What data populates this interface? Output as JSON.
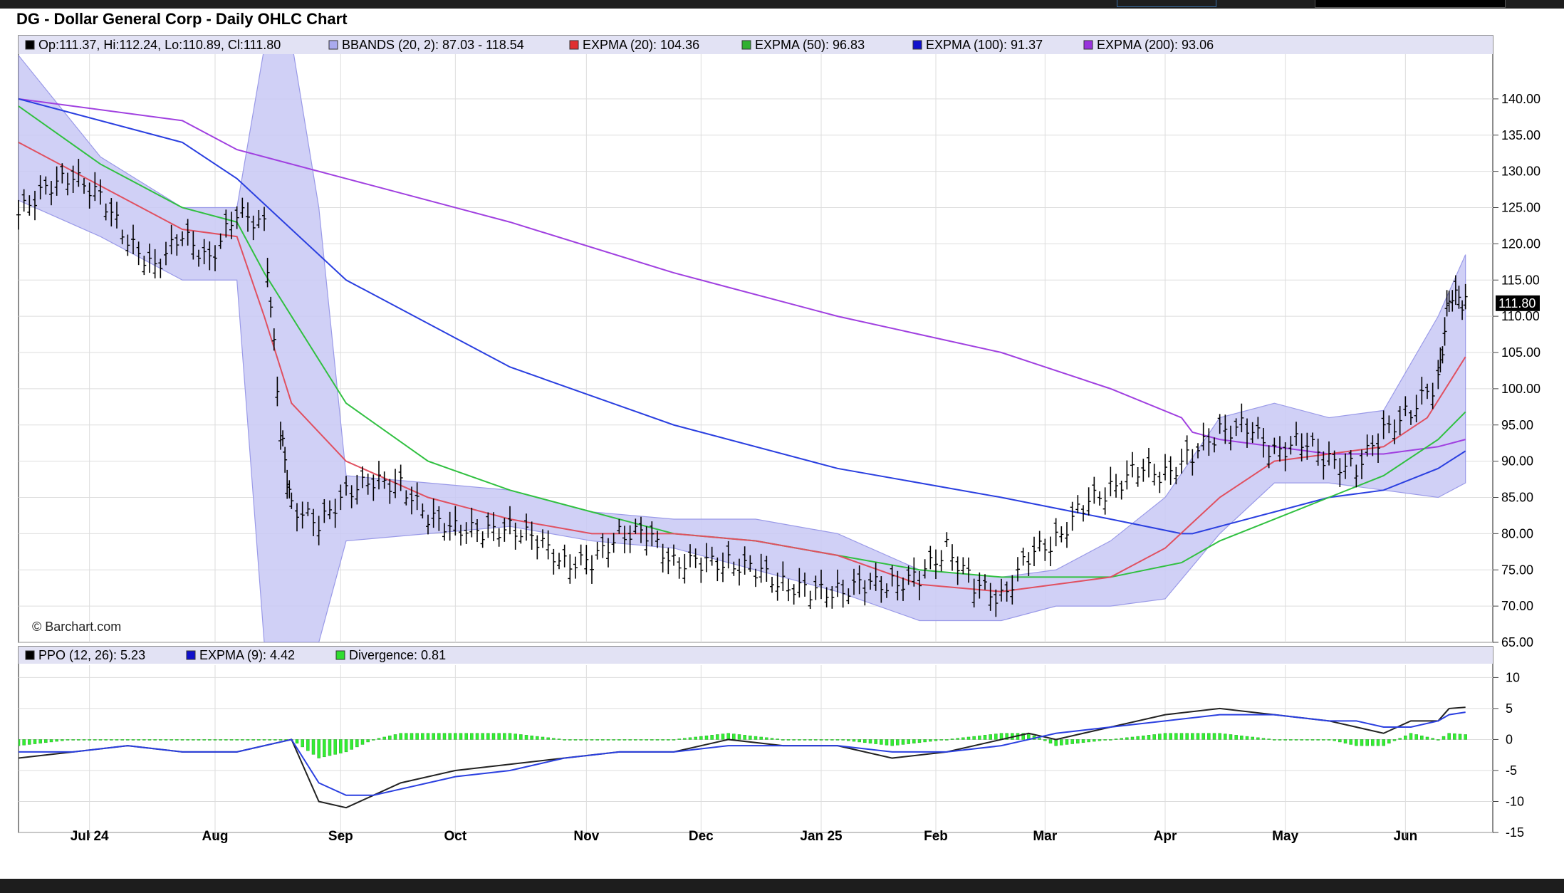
{
  "chart_data": [
    {
      "panel": "price",
      "type": "ohlc",
      "title": "DG - Dollar General Corp - Daily OHLC Chart",
      "ylim": [
        65,
        145
      ],
      "yticks": [
        "140.00",
        "135.00",
        "130.00",
        "125.00",
        "120.00",
        "115.00",
        "110.00",
        "105.00",
        "100.00",
        "95.00",
        "90.00",
        "85.00",
        "80.00",
        "75.00",
        "70.00",
        "65.00"
      ],
      "last_price_label": "111.80",
      "last_price": 111.8,
      "credit": "© Barchart.com",
      "legend": [
        {
          "label": "Op:111.37, Hi:112.24, Lo:110.89, Cl:111.80",
          "color": "#000000"
        },
        {
          "label": "BBANDS (20, 2): 87.03 - 118.54",
          "color": "#aaaaee"
        },
        {
          "label": "EXPMA (20): 104.36",
          "color": "#e03030"
        },
        {
          "label": "EXPMA (50): 96.83",
          "color": "#30b030"
        },
        {
          "label": "EXPMA (100): 91.37",
          "color": "#1010cc"
        },
        {
          "label": "EXPMA (200): 93.06",
          "color": "#9933dd"
        }
      ],
      "series": [
        {
          "name": "EXPMA (200)",
          "color": "#a040e0",
          "x": [
            0,
            30,
            40,
            60,
            90,
            120,
            150,
            180,
            200,
            213,
            215,
            220,
            230,
            240,
            250,
            260,
            265
          ],
          "values": [
            140,
            137,
            133,
            129,
            123,
            116,
            110,
            105,
            100,
            96,
            94,
            93,
            92,
            91,
            91,
            92,
            93
          ]
        },
        {
          "name": "EXPMA (100)",
          "color": "#2a3fe0",
          "x": [
            0,
            30,
            40,
            60,
            90,
            120,
            150,
            180,
            200,
            213,
            215,
            220,
            230,
            240,
            250,
            260,
            265
          ],
          "values": [
            140,
            134,
            129,
            115,
            103,
            95,
            89,
            85,
            82,
            80,
            80,
            81,
            83,
            85,
            86,
            89,
            91.4
          ]
        },
        {
          "name": "EXPMA (50)",
          "color": "#30c040",
          "x": [
            0,
            15,
            30,
            40,
            45,
            60,
            75,
            90,
            105,
            120,
            135,
            150,
            165,
            180,
            190,
            200,
            213,
            220,
            230,
            240,
            250,
            260,
            265
          ],
          "values": [
            139,
            131,
            125,
            123,
            116,
            98,
            90,
            86,
            83,
            80,
            79,
            77,
            75,
            74,
            74,
            74,
            76,
            79,
            82,
            85,
            88,
            93,
            96.8
          ]
        },
        {
          "name": "EXPMA (20)",
          "color": "#e05060",
          "x": [
            0,
            15,
            30,
            40,
            45,
            50,
            60,
            75,
            90,
            105,
            120,
            135,
            150,
            165,
            180,
            190,
            200,
            210,
            220,
            230,
            240,
            250,
            258,
            265
          ],
          "values": [
            134,
            128,
            122,
            121,
            110,
            98,
            90,
            85,
            82,
            80,
            80,
            79,
            77,
            73,
            72,
            73,
            74,
            78,
            85,
            90,
            91,
            92,
            96,
            104.4
          ]
        }
      ],
      "bbands": {
        "name": "BBANDS (20, 2)",
        "color": "#aaaaee",
        "x": [
          0,
          15,
          30,
          40,
          45,
          50,
          55,
          60,
          75,
          90,
          105,
          120,
          135,
          150,
          165,
          180,
          190,
          200,
          210,
          220,
          230,
          240,
          250,
          260,
          265
        ],
        "upper": [
          146,
          132,
          125,
          125,
          147,
          148,
          125,
          88,
          87,
          86,
          83,
          82,
          82,
          80,
          75,
          74,
          75,
          79,
          85,
          96,
          98,
          96,
          97,
          110,
          118.5
        ],
        "lower": [
          126,
          121,
          115,
          115,
          60,
          58,
          62,
          79,
          80,
          81,
          79,
          78,
          75,
          72,
          68,
          68,
          70,
          70,
          71,
          80,
          87,
          87,
          86,
          85,
          87
        ]
      },
      "ohlc_close": {
        "x": [
          0,
          5,
          10,
          15,
          20,
          25,
          30,
          35,
          40,
          45,
          48,
          50,
          55,
          60,
          65,
          70,
          75,
          80,
          85,
          90,
          95,
          100,
          105,
          110,
          115,
          120,
          125,
          130,
          135,
          140,
          145,
          150,
          155,
          160,
          165,
          170,
          175,
          180,
          185,
          190,
          195,
          200,
          205,
          210,
          215,
          220,
          225,
          230,
          235,
          240,
          245,
          250,
          255,
          260,
          262,
          265
        ],
        "values": [
          124,
          128,
          129,
          127,
          120,
          117,
          121,
          118,
          124,
          123,
          94,
          84,
          81,
          86,
          87,
          87,
          82,
          81,
          80,
          81,
          79,
          76,
          76,
          80,
          80,
          76,
          76,
          76,
          75,
          73,
          72,
          72,
          73,
          73,
          74,
          78,
          73,
          71,
          77,
          79,
          84,
          86,
          89,
          88,
          91,
          94,
          95,
          91,
          93,
          90,
          89,
          94,
          97,
          101,
          113,
          111.8
        ]
      },
      "x_labels": [
        {
          "label": "Jul 24",
          "x": 13
        },
        {
          "label": "Aug",
          "x": 36
        },
        {
          "label": "Sep",
          "x": 59
        },
        {
          "label": "Oct",
          "x": 80
        },
        {
          "label": "Nov",
          "x": 104
        },
        {
          "label": "Dec",
          "x": 125
        },
        {
          "label": "Jan 25",
          "x": 147
        },
        {
          "label": "Feb",
          "x": 168
        },
        {
          "label": "Mar",
          "x": 188
        },
        {
          "label": "Apr",
          "x": 210
        },
        {
          "label": "May",
          "x": 232
        },
        {
          "label": "Jun",
          "x": 254
        }
      ],
      "x_range": [
        0,
        270
      ]
    },
    {
      "panel": "ppo",
      "type": "line",
      "ylim": [
        -15,
        12
      ],
      "yticks": [
        "10",
        "5",
        "0",
        "-5",
        "-10",
        "-15"
      ],
      "legend": [
        {
          "label": "PPO (12, 26): 5.23",
          "color": "#000000"
        },
        {
          "label": "EXPMA (9): 4.42",
          "color": "#1010cc"
        },
        {
          "label": "Divergence: 0.81",
          "color": "#30dd30"
        }
      ],
      "series": [
        {
          "name": "PPO (12, 26)",
          "color": "#222222",
          "x": [
            0,
            10,
            20,
            30,
            40,
            50,
            55,
            60,
            65,
            70,
            80,
            90,
            100,
            110,
            120,
            130,
            140,
            150,
            160,
            170,
            180,
            185,
            190,
            200,
            210,
            220,
            230,
            240,
            245,
            250,
            255,
            260,
            262,
            265
          ],
          "values": [
            -3,
            -2,
            -1,
            -2,
            -2,
            0,
            -10,
            -11,
            -9,
            -7,
            -5,
            -4,
            -3,
            -2,
            -2,
            0,
            -1,
            -1,
            -3,
            -2,
            0,
            1,
            0,
            2,
            4,
            5,
            4,
            3,
            2,
            1,
            3,
            3,
            5,
            5.2
          ]
        },
        {
          "name": "EXPMA (9)",
          "color": "#2a3fe0",
          "x": [
            0,
            10,
            20,
            30,
            40,
            50,
            55,
            60,
            65,
            70,
            80,
            90,
            100,
            110,
            120,
            130,
            140,
            150,
            160,
            170,
            180,
            185,
            190,
            200,
            210,
            220,
            230,
            240,
            245,
            250,
            255,
            260,
            262,
            265
          ],
          "values": [
            -2,
            -2,
            -1,
            -2,
            -2,
            0,
            -7,
            -9,
            -9,
            -8,
            -6,
            -5,
            -3,
            -2,
            -2,
            -1,
            -1,
            -1,
            -2,
            -2,
            -1,
            0,
            1,
            2,
            3,
            4,
            4,
            3,
            3,
            2,
            2,
            3,
            4,
            4.4
          ]
        }
      ]
    }
  ]
}
